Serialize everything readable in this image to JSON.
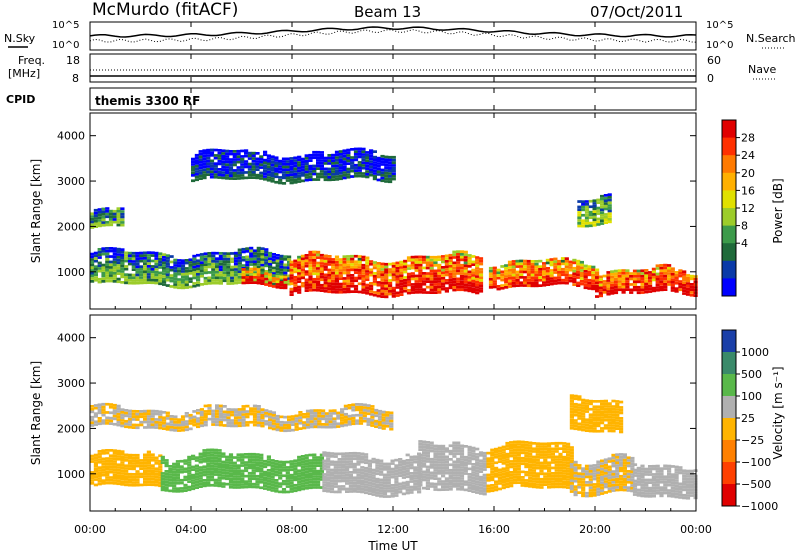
{
  "header": {
    "station": "McMurdo (fitACF)",
    "beam": "Beam 13",
    "date": "07/Oct/2011"
  },
  "noise_panel": {
    "left_label": "N.Sky",
    "right_label": "N.Search",
    "left_ticks": [
      "10^5",
      "10^0"
    ],
    "right_ticks": [
      "10^5",
      "10^0"
    ]
  },
  "freq_panel": {
    "left_label": "Freq.",
    "left_unit": "[MHz]",
    "left_ticks": [
      "18",
      "8"
    ],
    "right_label": "Nave",
    "right_ticks": [
      "60",
      "0"
    ],
    "cpid_label": "CPID"
  },
  "cpid_panel": {
    "text": "themis 3300 RF"
  },
  "power_panel": {
    "ylabel": "Slant Range [km]",
    "yticks": [
      "4000",
      "3000",
      "2000",
      "1000"
    ],
    "cbar_label": "Power [dB]",
    "cbar_ticks": [
      "28",
      "24",
      "20",
      "16",
      "12",
      "8",
      "4"
    ],
    "cbar_colors": [
      "#e00000",
      "#ff3000",
      "#ff7a00",
      "#ffb000",
      "#e0e000",
      "#9ccc2a",
      "#3c9a4a",
      "#1f6a3a",
      "#0a3aa8",
      "#0000ff"
    ]
  },
  "velocity_panel": {
    "ylabel": "Slant Range [km]",
    "yticks": [
      "4000",
      "3000",
      "2000",
      "1000"
    ],
    "cbar_label": "Velocity [m s⁻¹]",
    "cbar_ticks": [
      "1000",
      "500",
      "100",
      "25",
      "−25",
      "−100",
      "−500",
      "−1000"
    ],
    "cbar_colors": [
      "#1a3fa8",
      "#3a8a6a",
      "#59b84a",
      "#b0b0b0",
      "#ffb400",
      "#ff8000",
      "#ff4000",
      "#e00000"
    ]
  },
  "xaxis": {
    "label": "Time UT",
    "ticks": [
      "00:00",
      "04:00",
      "08:00",
      "12:00",
      "16:00",
      "20:00",
      "00:00"
    ]
  },
  "chart_data": {
    "type": "heatmap",
    "x_range_hours": [
      0,
      24
    ],
    "y_range_km": [
      180,
      4500
    ],
    "panels": [
      {
        "name": "Power",
        "units": "dB",
        "scale": [
          0,
          30
        ],
        "bands": [
          {
            "t_start": 0.0,
            "t_end": 7.9,
            "range_low_km": 700,
            "range_high_km": 1400,
            "value": 14
          },
          {
            "t_start": 6.0,
            "t_end": 7.7,
            "range_low_km": 700,
            "range_high_km": 1000,
            "value": 30
          },
          {
            "t_start": 7.9,
            "t_end": 15.5,
            "range_low_km": 500,
            "range_high_km": 1300,
            "value": 30
          },
          {
            "t_start": 15.8,
            "t_end": 20.0,
            "range_low_km": 650,
            "range_high_km": 1200,
            "value": 28
          },
          {
            "t_start": 20.0,
            "t_end": 24.0,
            "range_low_km": 500,
            "range_high_km": 1000,
            "value": 30
          },
          {
            "t_start": 0.0,
            "t_end": 1.3,
            "range_low_km": 2000,
            "range_high_km": 2400,
            "value": 14
          },
          {
            "t_start": 19.3,
            "t_end": 20.5,
            "range_low_km": 2000,
            "range_high_km": 2600,
            "value": 16
          },
          {
            "t_start": 4.0,
            "t_end": 12.0,
            "range_low_km": 3000,
            "range_high_km": 3600,
            "value": 8
          }
        ]
      },
      {
        "name": "Velocity",
        "units": "m s^-1",
        "scale": [
          -1000,
          1000
        ],
        "bands": [
          {
            "t_start": 0.0,
            "t_end": 2.8,
            "range_low_km": 700,
            "range_high_km": 1400,
            "value": -100
          },
          {
            "t_start": 2.8,
            "t_end": 9.2,
            "range_low_km": 650,
            "range_high_km": 1400,
            "value": 300
          },
          {
            "t_start": 9.2,
            "t_end": 13.0,
            "range_low_km": 550,
            "range_high_km": 1400,
            "value": 100
          },
          {
            "t_start": 13.0,
            "t_end": 15.7,
            "range_low_km": 600,
            "range_high_km": 1600,
            "value": 60
          },
          {
            "t_start": 15.7,
            "t_end": 19.0,
            "range_low_km": 650,
            "range_high_km": 1600,
            "value": -100
          },
          {
            "t_start": 19.0,
            "t_end": 21.5,
            "range_low_km": 550,
            "range_high_km": 1300,
            "value": 0
          },
          {
            "t_start": 21.5,
            "t_end": 24.0,
            "range_low_km": 500,
            "range_high_km": 1200,
            "value": 100
          },
          {
            "t_start": 0.0,
            "t_end": 12.0,
            "range_low_km": 2000,
            "range_high_km": 2400,
            "value": 0
          },
          {
            "t_start": 19.0,
            "t_end": 21.0,
            "range_low_km": 1900,
            "range_high_km": 2600,
            "value": -100
          }
        ]
      }
    ]
  }
}
